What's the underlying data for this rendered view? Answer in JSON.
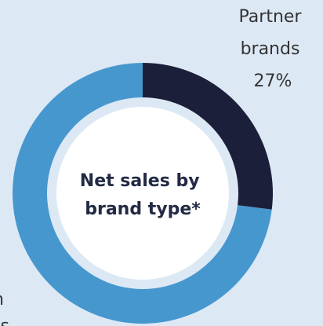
{
  "chart_data": {
    "type": "pie",
    "title_lines": [
      "Net sales by",
      "brand type*"
    ],
    "categories": [
      "Partner brands",
      "Own brands"
    ],
    "values": [
      27,
      73
    ],
    "labels": [
      {
        "lines": [
          "Partner",
          "brands",
          "27%"
        ]
      },
      {
        "lines": [
          "n",
          "s"
        ]
      }
    ],
    "colors": [
      "#1c1f3a",
      "#4797cf"
    ],
    "inner_ring_color": "#dce9f5",
    "center_color": "#ffffff"
  }
}
